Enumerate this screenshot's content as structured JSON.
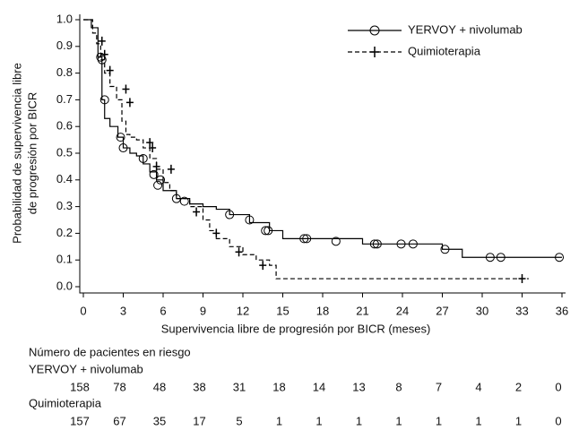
{
  "chart_data": {
    "type": "survival",
    "xlabel": "Supervivencia libre de progresión por BICR (meses)",
    "ylabel": [
      "Probabilidad de supervivencia libre",
      "de progresión por BICR"
    ],
    "xlim": [
      0,
      36
    ],
    "ylim": [
      0,
      1
    ],
    "xticks": [
      0,
      3,
      6,
      9,
      12,
      15,
      18,
      21,
      24,
      27,
      30,
      33,
      36
    ],
    "yticks": [
      {
        "value": 0,
        "label": "0.0"
      },
      0.1,
      0.2,
      0.3,
      0.4,
      0.5,
      0.6,
      0.7,
      0.8,
      0.9,
      {
        "value": 1,
        "label": "1.0"
      }
    ],
    "legend": "top-right",
    "series": [
      {
        "name": "YERVOY + nivolumab",
        "color": "#000000",
        "dash": "solid",
        "marker": "circle",
        "x": [
          0,
          0.6,
          1.1,
          1.4,
          1.6,
          2.0,
          2.6,
          3.0,
          3.5,
          4.0,
          4.5,
          5.0,
          5.5,
          6.0,
          7.0,
          8.0,
          9.0,
          10.0,
          11.0,
          12.5,
          14.0,
          15.0,
          21.0,
          27.0,
          28.5,
          36
        ],
        "values": [
          1.0,
          0.97,
          0.86,
          0.7,
          0.63,
          0.6,
          0.56,
          0.52,
          0.5,
          0.49,
          0.46,
          0.43,
          0.4,
          0.36,
          0.33,
          0.31,
          0.3,
          0.29,
          0.27,
          0.24,
          0.21,
          0.18,
          0.16,
          0.14,
          0.11,
          0.11
        ],
        "censored": {
          "x": [
            1.3,
            1.4,
            1.6,
            2.8,
            3.0,
            4.5,
            5.3,
            5.6,
            5.8,
            7.0,
            7.6,
            11.0,
            12.5,
            13.7,
            13.9,
            16.6,
            16.8,
            19.0,
            21.9,
            22.1,
            23.9,
            24.8,
            27.2,
            30.6,
            31.4,
            35.8
          ],
          "values": [
            0.86,
            0.85,
            0.7,
            0.56,
            0.52,
            0.48,
            0.42,
            0.38,
            0.4,
            0.33,
            0.32,
            0.27,
            0.25,
            0.21,
            0.21,
            0.18,
            0.18,
            0.17,
            0.16,
            0.16,
            0.16,
            0.16,
            0.14,
            0.11,
            0.11,
            0.11
          ]
        }
      },
      {
        "name": "Quimioterapia",
        "color": "#000000",
        "dash": "dashed",
        "marker": "plus",
        "x": [
          0,
          0.7,
          1.0,
          1.3,
          1.6,
          2.0,
          2.5,
          2.9,
          3.2,
          3.5,
          4.0,
          4.5,
          5.0,
          5.5,
          6.0,
          6.5,
          7.0,
          8.0,
          9.0,
          9.5,
          10.0,
          11.0,
          12.0,
          13.0,
          14.0,
          14.5,
          33.5
        ],
        "values": [
          1.0,
          0.95,
          0.91,
          0.85,
          0.8,
          0.75,
          0.7,
          0.62,
          0.57,
          0.56,
          0.55,
          0.52,
          0.48,
          0.44,
          0.39,
          0.36,
          0.33,
          0.3,
          0.25,
          0.21,
          0.18,
          0.15,
          0.12,
          0.1,
          0.08,
          0.03,
          0.03
        ],
        "censored": {
          "x": [
            1.4,
            1.6,
            2.0,
            3.2,
            3.5,
            5.0,
            5.2,
            5.5,
            6.6,
            8.5,
            10.0,
            11.7,
            13.5,
            33.0
          ],
          "values": [
            0.92,
            0.87,
            0.81,
            0.74,
            0.69,
            0.54,
            0.52,
            0.45,
            0.44,
            0.28,
            0.2,
            0.13,
            0.08,
            0.03
          ]
        }
      }
    ],
    "at_risk": {
      "title": "Número de pacientes en riesgo",
      "rows": [
        {
          "name": "YERVOY + nivolumab",
          "values": [
            158,
            78,
            48,
            38,
            31,
            18,
            14,
            13,
            8,
            7,
            4,
            2,
            0
          ]
        },
        {
          "name": "Quimioterapia",
          "values": [
            157,
            67,
            35,
            17,
            5,
            1,
            1,
            1,
            1,
            1,
            1,
            1,
            0
          ]
        }
      ]
    }
  }
}
